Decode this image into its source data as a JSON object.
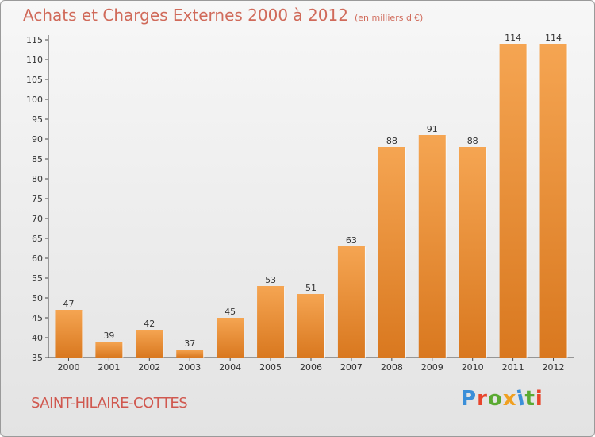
{
  "header": {
    "title": "Achats et Charges Externes 2000 à 2012",
    "subtitle": "(en milliers d'€)"
  },
  "footer": {
    "commune": "SAINT-HILAIRE-COTTES",
    "logo_text": "Proxiti"
  },
  "colors": {
    "bar_light": "#f5a552",
    "bar_dark": "#d9781f",
    "title": "#d06a5a",
    "commune": "#d0584f",
    "logo": [
      "#3b8fd9",
      "#e8452c",
      "#5aaa32",
      "#f0a021",
      "#3b8fd9",
      "#5aaa32",
      "#e8452c"
    ]
  },
  "chart_data": {
    "type": "bar",
    "title": "Achats et Charges Externes 2000 à 2012",
    "categories": [
      "2000",
      "2001",
      "2002",
      "2003",
      "2004",
      "2005",
      "2006",
      "2007",
      "2008",
      "2009",
      "2010",
      "2011",
      "2012"
    ],
    "values": [
      47,
      39,
      42,
      37,
      45,
      53,
      51,
      63,
      88,
      91,
      88,
      114,
      114
    ],
    "ylim": [
      35,
      115
    ],
    "yticks": [
      35,
      40,
      45,
      50,
      55,
      60,
      65,
      70,
      75,
      80,
      85,
      90,
      95,
      100,
      105,
      110,
      115
    ],
    "grid": false,
    "legend": "none"
  }
}
